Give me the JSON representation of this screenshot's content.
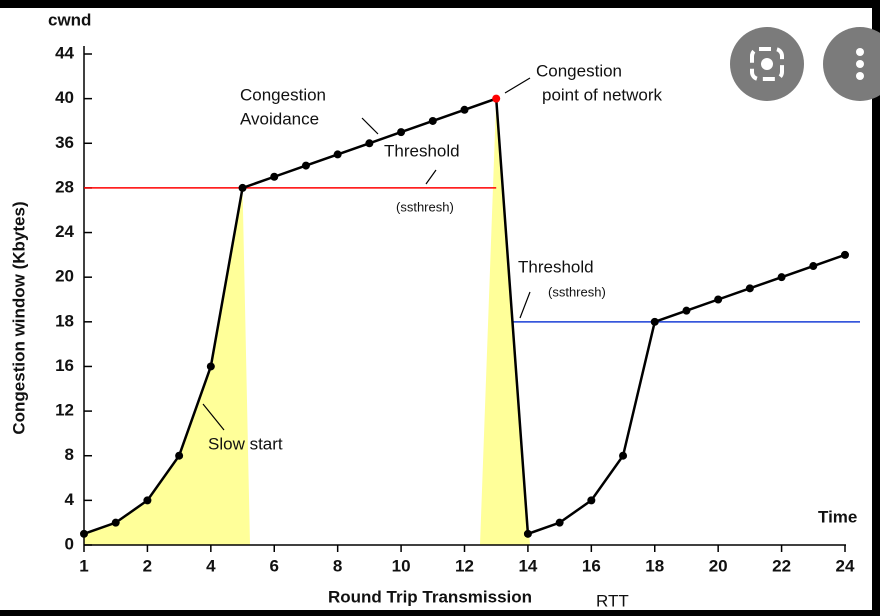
{
  "chart_data": {
    "type": "line",
    "y_label_top": "cwnd",
    "y_label": "Congestion window (Kbytes)",
    "x_label": "Round Trip Transmission",
    "x_unit": "RTT",
    "x_end_label": "Time",
    "xlim": [
      1,
      24
    ],
    "xticks": [
      1,
      2,
      4,
      6,
      8,
      10,
      12,
      14,
      16,
      18,
      20,
      22,
      24
    ],
    "ylim": [
      0,
      44
    ],
    "yticks": [
      0,
      4,
      8,
      12,
      16,
      18,
      20,
      24,
      28,
      36,
      40,
      44
    ],
    "x": [
      1,
      1.5,
      2,
      3,
      4,
      5,
      6,
      7,
      8,
      9,
      10,
      11,
      12,
      13,
      14,
      15,
      16,
      17,
      18,
      19,
      20,
      21,
      22,
      23,
      24
    ],
    "values": [
      1,
      2,
      4,
      8,
      16,
      28,
      30,
      32,
      34,
      36,
      37,
      38,
      39,
      40,
      1,
      2,
      4,
      8,
      18,
      18.5,
      19,
      19.5,
      20,
      21,
      22
    ],
    "color": "#000000",
    "peak_color": "#ff0000",
    "fill_color": "#ffff99",
    "thresholds": [
      {
        "value": 28,
        "color": "#ff0000",
        "label": "Threshold",
        "sublabel": "(ssthresh)"
      },
      {
        "value": 18,
        "color": "#1a3fd6",
        "label": "Threshold",
        "sublabel": "(ssthresh)"
      }
    ],
    "annotations": [
      {
        "text": [
          "Congestion",
          "Avoidance"
        ]
      },
      {
        "text": [
          "Congestion",
          "point of network"
        ]
      },
      {
        "text": [
          "Slow start"
        ]
      }
    ]
  }
}
